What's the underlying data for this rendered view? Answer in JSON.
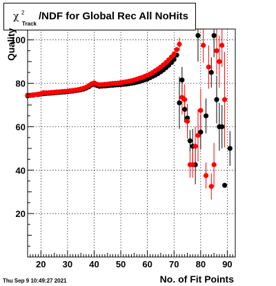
{
  "title": {
    "chi": "χ",
    "sup": "2",
    "sub": "Track",
    "rest": "/NDF for Global Rec All NoHits"
  },
  "ylabel": "Quality",
  "xlabel": "No. of Fit Points",
  "timestamp": "Thu Sep  9 10:49:27 2021",
  "chart_data": {
    "type": "scatter",
    "xlim": [
      15,
      93
    ],
    "ylim": [
      0,
      105
    ],
    "xticks": [
      20,
      30,
      40,
      50,
      60,
      70,
      80,
      90
    ],
    "yticks": [
      20,
      40,
      60,
      80,
      100
    ],
    "grid": true,
    "series": [
      {
        "color": "#000000",
        "points": [
          [
            15,
            74.2
          ],
          [
            16,
            74.4
          ],
          [
            17,
            74.5
          ],
          [
            18,
            74.8
          ],
          [
            19,
            74.8
          ],
          [
            20,
            75.0
          ],
          [
            21,
            75.2
          ],
          [
            22,
            75.3
          ],
          [
            23,
            75.4
          ],
          [
            24,
            75.5
          ],
          [
            25,
            75.6
          ],
          [
            26,
            75.7
          ],
          [
            27,
            75.8
          ],
          [
            28,
            75.9
          ],
          [
            29,
            76.0
          ],
          [
            30,
            76.1
          ],
          [
            31,
            76.3
          ],
          [
            32,
            76.4
          ],
          [
            33,
            76.6
          ],
          [
            34,
            76.8
          ],
          [
            35,
            77.0
          ],
          [
            36,
            77.3
          ],
          [
            37,
            77.8
          ],
          [
            38,
            78.4
          ],
          [
            39,
            79.2
          ],
          [
            40,
            79.6
          ],
          [
            41,
            79.0
          ],
          [
            42,
            78.6
          ],
          [
            43,
            78.7
          ],
          [
            44,
            78.8
          ],
          [
            45,
            78.9
          ],
          [
            46,
            79.0
          ],
          [
            47,
            79.1
          ],
          [
            48,
            79.2
          ],
          [
            49,
            79.3
          ],
          [
            50,
            79.4
          ],
          [
            51,
            79.5
          ],
          [
            52,
            79.6
          ],
          [
            53,
            79.8
          ],
          [
            54,
            80.0
          ],
          [
            55,
            80.2
          ],
          [
            56,
            80.5
          ],
          [
            57,
            80.8
          ],
          [
            58,
            81.2
          ],
          [
            59,
            81.6
          ],
          [
            60,
            82.0
          ],
          [
            61,
            82.6
          ],
          [
            62,
            83.2
          ],
          [
            63,
            83.8
          ],
          [
            64,
            84.5
          ],
          [
            65,
            85.3
          ],
          [
            66,
            86.2
          ],
          [
            67,
            87.2
          ],
          [
            68,
            88.3
          ],
          [
            69,
            89.6
          ],
          [
            70,
            91.0
          ],
          [
            71,
            93.0
          ],
          [
            72,
            71.0
          ],
          [
            73,
            81.5
          ],
          [
            74,
            68.0
          ],
          [
            75,
            64.0
          ],
          [
            76,
            53.5
          ],
          [
            77,
            51.0
          ],
          [
            78,
            42.5
          ],
          [
            79,
            102.0
          ],
          [
            80,
            57.5
          ],
          [
            82,
            65.0
          ],
          [
            84,
            85.0
          ],
          [
            85,
            102.0
          ],
          [
            86,
            72.5
          ],
          [
            87,
            60.0
          ],
          [
            88,
            60.0
          ],
          [
            89,
            33.0
          ],
          [
            91,
            50.0
          ]
        ],
        "errors": [
          [
            72,
            12
          ],
          [
            73,
            6
          ],
          [
            74,
            6
          ],
          [
            75,
            6
          ],
          [
            76,
            5
          ],
          [
            77,
            8
          ],
          [
            78,
            9
          ],
          [
            79,
            12
          ],
          [
            80,
            8
          ],
          [
            82,
            8
          ],
          [
            84,
            7
          ],
          [
            85,
            10
          ],
          [
            86,
            11
          ],
          [
            87,
            11
          ],
          [
            88,
            10
          ],
          [
            89,
            1
          ],
          [
            91,
            8
          ]
        ]
      },
      {
        "color": "#ff0000",
        "points": [
          [
            15,
            74.5
          ],
          [
            16,
            74.5
          ],
          [
            17,
            74.7
          ],
          [
            18,
            74.8
          ],
          [
            19,
            75.0
          ],
          [
            20,
            75.2
          ],
          [
            21,
            75.7
          ],
          [
            22,
            75.6
          ],
          [
            23,
            75.7
          ],
          [
            24,
            75.8
          ],
          [
            25,
            75.9
          ],
          [
            26,
            76.0
          ],
          [
            27,
            76.1
          ],
          [
            28,
            76.2
          ],
          [
            29,
            76.3
          ],
          [
            30,
            76.4
          ],
          [
            31,
            76.6
          ],
          [
            32,
            76.7
          ],
          [
            33,
            76.9
          ],
          [
            34,
            77.1
          ],
          [
            35,
            77.4
          ],
          [
            36,
            77.7
          ],
          [
            37,
            78.2
          ],
          [
            38,
            78.9
          ],
          [
            39,
            79.7
          ],
          [
            40,
            80.2
          ],
          [
            41,
            79.6
          ],
          [
            42,
            79.3
          ],
          [
            43,
            79.4
          ],
          [
            44,
            79.5
          ],
          [
            45,
            79.6
          ],
          [
            46,
            79.8
          ],
          [
            47,
            79.9
          ],
          [
            48,
            80.0
          ],
          [
            49,
            80.1
          ],
          [
            50,
            80.3
          ],
          [
            51,
            80.5
          ],
          [
            52,
            80.7
          ],
          [
            53,
            80.9
          ],
          [
            54,
            81.2
          ],
          [
            55,
            81.5
          ],
          [
            56,
            81.9
          ],
          [
            57,
            82.3
          ],
          [
            58,
            82.7
          ],
          [
            59,
            83.2
          ],
          [
            60,
            83.7
          ],
          [
            61,
            84.3
          ],
          [
            62,
            85.0
          ],
          [
            63,
            85.8
          ],
          [
            64,
            86.6
          ],
          [
            65,
            87.5
          ],
          [
            66,
            88.5
          ],
          [
            67,
            89.6
          ],
          [
            68,
            90.8
          ],
          [
            69,
            92.1
          ],
          [
            70,
            93.5
          ],
          [
            71,
            95.5
          ],
          [
            72,
            98.0
          ],
          [
            73,
            73.5
          ],
          [
            74,
            72.5
          ],
          [
            75,
            62.5
          ],
          [
            76,
            42.5
          ],
          [
            77,
            42.5
          ],
          [
            78,
            51.0
          ],
          [
            79,
            56.0
          ],
          [
            80,
            67.5
          ],
          [
            81,
            97.5
          ],
          [
            82,
            37.5
          ],
          [
            83,
            87.5
          ],
          [
            84,
            32.5
          ],
          [
            85,
            42.5
          ],
          [
            86,
            95.0
          ],
          [
            87,
            90.0
          ],
          [
            88,
            97.5
          ],
          [
            89,
            72.5
          ]
        ],
        "errors": [
          [
            72,
            3
          ],
          [
            73,
            8
          ],
          [
            74,
            7
          ],
          [
            75,
            8
          ],
          [
            76,
            6
          ],
          [
            77,
            6
          ],
          [
            78,
            9
          ],
          [
            79,
            12
          ],
          [
            80,
            10
          ],
          [
            81,
            8
          ],
          [
            82,
            6
          ],
          [
            83,
            10
          ],
          [
            84,
            6
          ],
          [
            85,
            10
          ],
          [
            86,
            11
          ],
          [
            87,
            12
          ],
          [
            88,
            10
          ],
          [
            89,
            22
          ]
        ]
      }
    ]
  }
}
